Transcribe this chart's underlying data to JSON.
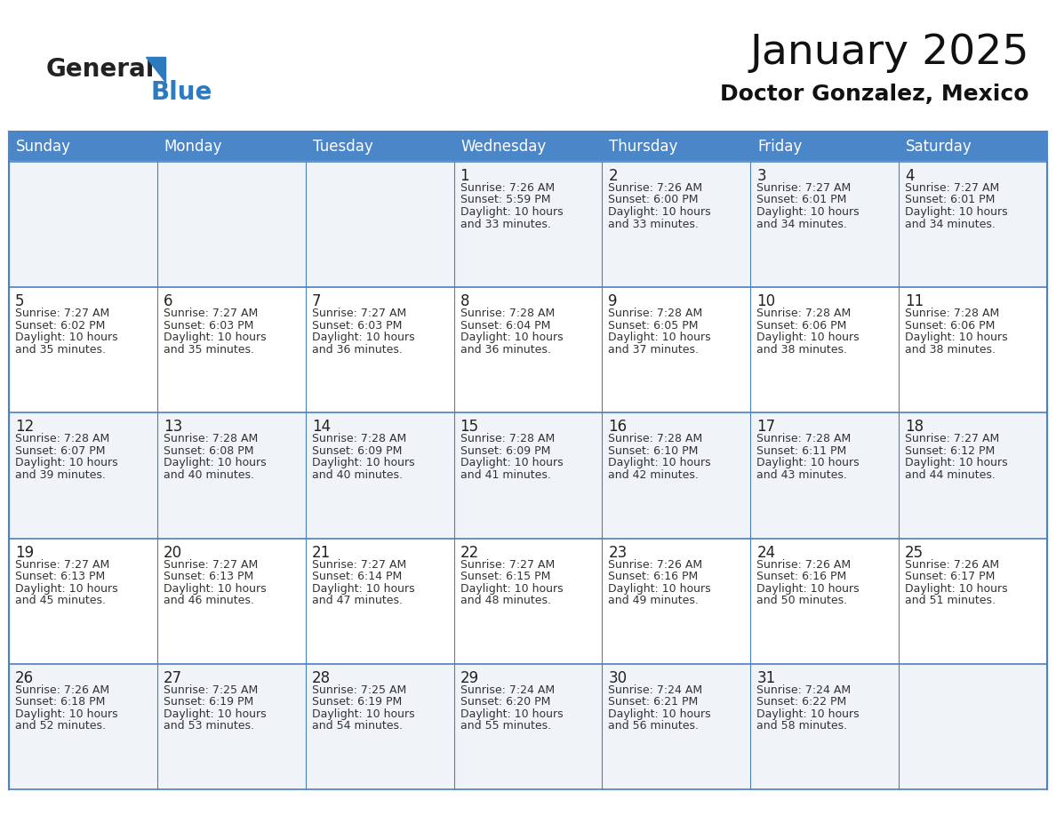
{
  "title": "January 2025",
  "subtitle": "Doctor Gonzalez, Mexico",
  "header_bg": "#4a86c8",
  "header_text_color": "#ffffff",
  "cell_bg_gray": "#f0f4f8",
  "cell_bg_white": "#ffffff",
  "border_color": "#4a7fc0",
  "row_border_color": "#6699cc",
  "day_names": [
    "Sunday",
    "Monday",
    "Tuesday",
    "Wednesday",
    "Thursday",
    "Friday",
    "Saturday"
  ],
  "title_fontsize": 34,
  "subtitle_fontsize": 18,
  "header_fontsize": 12,
  "day_num_fontsize": 12,
  "cell_fontsize": 9,
  "logo_general_color": "#222222",
  "logo_blue_color": "#2e7abf",
  "calendar": [
    [
      {
        "day": null,
        "info": ""
      },
      {
        "day": null,
        "info": ""
      },
      {
        "day": null,
        "info": ""
      },
      {
        "day": 1,
        "info": "Sunrise: 7:26 AM\nSunset: 5:59 PM\nDaylight: 10 hours\nand 33 minutes."
      },
      {
        "day": 2,
        "info": "Sunrise: 7:26 AM\nSunset: 6:00 PM\nDaylight: 10 hours\nand 33 minutes."
      },
      {
        "day": 3,
        "info": "Sunrise: 7:27 AM\nSunset: 6:01 PM\nDaylight: 10 hours\nand 34 minutes."
      },
      {
        "day": 4,
        "info": "Sunrise: 7:27 AM\nSunset: 6:01 PM\nDaylight: 10 hours\nand 34 minutes."
      }
    ],
    [
      {
        "day": 5,
        "info": "Sunrise: 7:27 AM\nSunset: 6:02 PM\nDaylight: 10 hours\nand 35 minutes."
      },
      {
        "day": 6,
        "info": "Sunrise: 7:27 AM\nSunset: 6:03 PM\nDaylight: 10 hours\nand 35 minutes."
      },
      {
        "day": 7,
        "info": "Sunrise: 7:27 AM\nSunset: 6:03 PM\nDaylight: 10 hours\nand 36 minutes."
      },
      {
        "day": 8,
        "info": "Sunrise: 7:28 AM\nSunset: 6:04 PM\nDaylight: 10 hours\nand 36 minutes."
      },
      {
        "day": 9,
        "info": "Sunrise: 7:28 AM\nSunset: 6:05 PM\nDaylight: 10 hours\nand 37 minutes."
      },
      {
        "day": 10,
        "info": "Sunrise: 7:28 AM\nSunset: 6:06 PM\nDaylight: 10 hours\nand 38 minutes."
      },
      {
        "day": 11,
        "info": "Sunrise: 7:28 AM\nSunset: 6:06 PM\nDaylight: 10 hours\nand 38 minutes."
      }
    ],
    [
      {
        "day": 12,
        "info": "Sunrise: 7:28 AM\nSunset: 6:07 PM\nDaylight: 10 hours\nand 39 minutes."
      },
      {
        "day": 13,
        "info": "Sunrise: 7:28 AM\nSunset: 6:08 PM\nDaylight: 10 hours\nand 40 minutes."
      },
      {
        "day": 14,
        "info": "Sunrise: 7:28 AM\nSunset: 6:09 PM\nDaylight: 10 hours\nand 40 minutes."
      },
      {
        "day": 15,
        "info": "Sunrise: 7:28 AM\nSunset: 6:09 PM\nDaylight: 10 hours\nand 41 minutes."
      },
      {
        "day": 16,
        "info": "Sunrise: 7:28 AM\nSunset: 6:10 PM\nDaylight: 10 hours\nand 42 minutes."
      },
      {
        "day": 17,
        "info": "Sunrise: 7:28 AM\nSunset: 6:11 PM\nDaylight: 10 hours\nand 43 minutes."
      },
      {
        "day": 18,
        "info": "Sunrise: 7:27 AM\nSunset: 6:12 PM\nDaylight: 10 hours\nand 44 minutes."
      }
    ],
    [
      {
        "day": 19,
        "info": "Sunrise: 7:27 AM\nSunset: 6:13 PM\nDaylight: 10 hours\nand 45 minutes."
      },
      {
        "day": 20,
        "info": "Sunrise: 7:27 AM\nSunset: 6:13 PM\nDaylight: 10 hours\nand 46 minutes."
      },
      {
        "day": 21,
        "info": "Sunrise: 7:27 AM\nSunset: 6:14 PM\nDaylight: 10 hours\nand 47 minutes."
      },
      {
        "day": 22,
        "info": "Sunrise: 7:27 AM\nSunset: 6:15 PM\nDaylight: 10 hours\nand 48 minutes."
      },
      {
        "day": 23,
        "info": "Sunrise: 7:26 AM\nSunset: 6:16 PM\nDaylight: 10 hours\nand 49 minutes."
      },
      {
        "day": 24,
        "info": "Sunrise: 7:26 AM\nSunset: 6:16 PM\nDaylight: 10 hours\nand 50 minutes."
      },
      {
        "day": 25,
        "info": "Sunrise: 7:26 AM\nSunset: 6:17 PM\nDaylight: 10 hours\nand 51 minutes."
      }
    ],
    [
      {
        "day": 26,
        "info": "Sunrise: 7:26 AM\nSunset: 6:18 PM\nDaylight: 10 hours\nand 52 minutes."
      },
      {
        "day": 27,
        "info": "Sunrise: 7:25 AM\nSunset: 6:19 PM\nDaylight: 10 hours\nand 53 minutes."
      },
      {
        "day": 28,
        "info": "Sunrise: 7:25 AM\nSunset: 6:19 PM\nDaylight: 10 hours\nand 54 minutes."
      },
      {
        "day": 29,
        "info": "Sunrise: 7:24 AM\nSunset: 6:20 PM\nDaylight: 10 hours\nand 55 minutes."
      },
      {
        "day": 30,
        "info": "Sunrise: 7:24 AM\nSunset: 6:21 PM\nDaylight: 10 hours\nand 56 minutes."
      },
      {
        "day": 31,
        "info": "Sunrise: 7:24 AM\nSunset: 6:22 PM\nDaylight: 10 hours\nand 58 minutes."
      },
      {
        "day": null,
        "info": ""
      }
    ]
  ]
}
